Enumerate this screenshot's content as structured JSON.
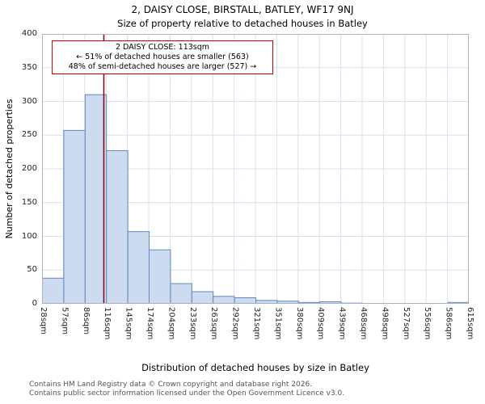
{
  "title": "2, DAISY CLOSE, BIRSTALL, BATLEY, WF17 9NJ",
  "subtitle": "Size of property relative to detached houses in Batley",
  "annotation": {
    "line1": "2 DAISY CLOSE: 113sqm",
    "line2": "← 51% of detached houses are smaller (563)",
    "line3": "48% of semi-detached houses are larger (527) →"
  },
  "footer": {
    "line1": "Contains HM Land Registry data © Crown copyright and database right 2026.",
    "line2": "Contains public sector information licensed under the Open Government Licence v3.0."
  },
  "chart_data": {
    "type": "bar",
    "title": "2, DAISY CLOSE, BIRSTALL, BATLEY, WF17 9NJ — Size of property relative to detached houses in Batley",
    "xlabel": "Distribution of detached houses by size in Batley",
    "ylabel": "Number of detached properties",
    "bin_edges_sqm": [
      28,
      57,
      86,
      116,
      145,
      174,
      204,
      233,
      263,
      292,
      321,
      351,
      380,
      409,
      439,
      468,
      498,
      527,
      556,
      586,
      615
    ],
    "tick_labels": [
      "28sqm",
      "57sqm",
      "86sqm",
      "116sqm",
      "145sqm",
      "174sqm",
      "204sqm",
      "233sqm",
      "263sqm",
      "292sqm",
      "321sqm",
      "351sqm",
      "380sqm",
      "409sqm",
      "439sqm",
      "468sqm",
      "498sqm",
      "527sqm",
      "556sqm",
      "586sqm",
      "615sqm"
    ],
    "values": [
      38,
      257,
      310,
      227,
      107,
      80,
      30,
      18,
      11,
      9,
      5,
      4,
      2,
      3,
      1,
      0,
      0,
      0,
      0,
      2
    ],
    "ylim": [
      0,
      400
    ],
    "yticks": [
      0,
      50,
      100,
      150,
      200,
      250,
      300,
      350,
      400
    ],
    "marker_value_sqm": 113,
    "legend": "none",
    "grid": "on",
    "colors": {
      "bar_fill": "#ccdbf0",
      "bar_stroke": "#6288bf",
      "marker": "#8b0000",
      "grid": "#d9e0ee",
      "border": "#aab2c0",
      "annotation_border": "#cc0000"
    }
  }
}
